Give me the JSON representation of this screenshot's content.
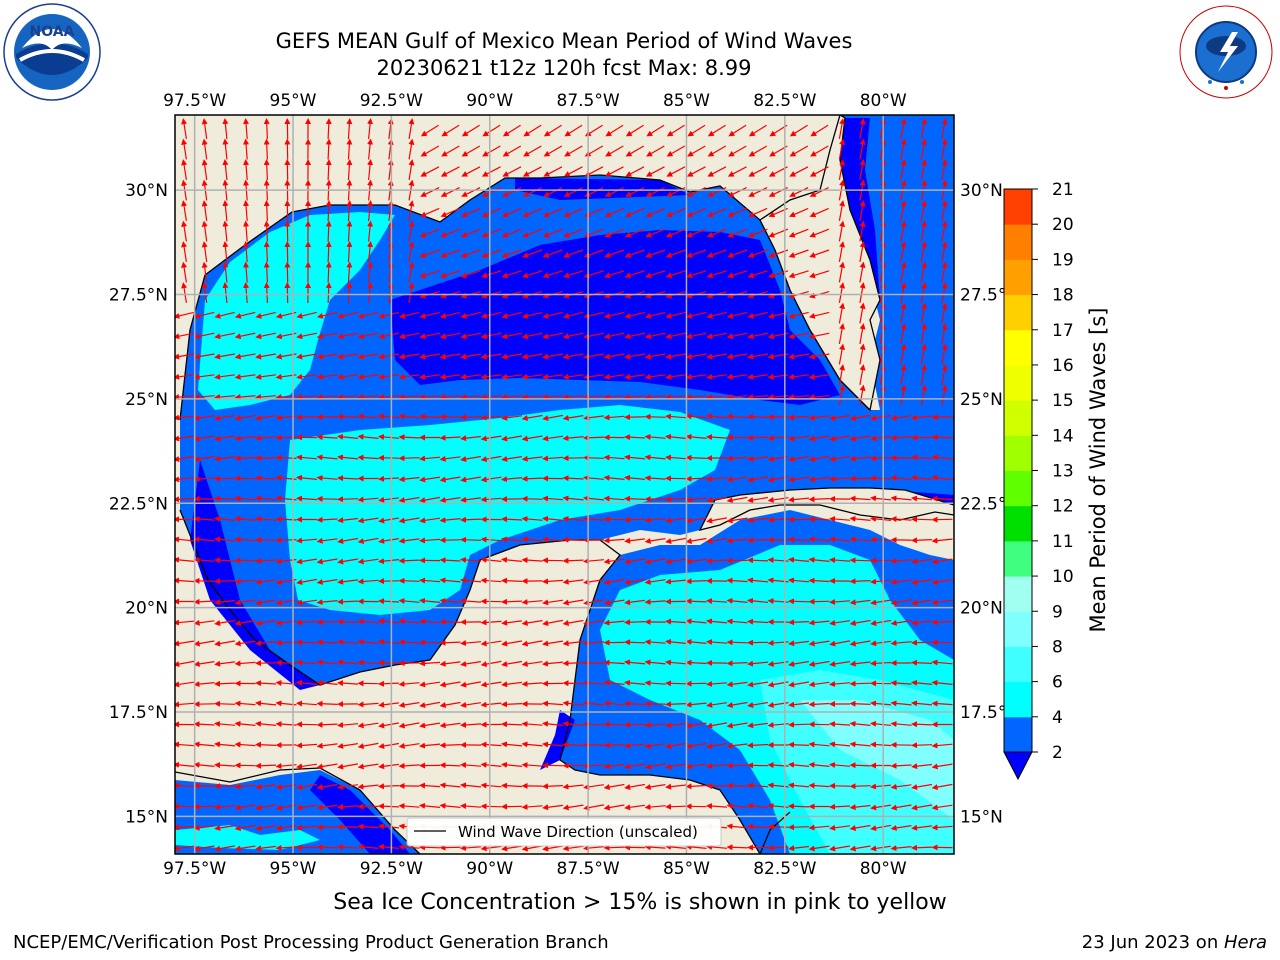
{
  "title": {
    "line1": "GEFS MEAN Gulf of Mexico Mean Period of Wind Waves",
    "line2": "20230621 t12z 120h fcst   Max: 8.99"
  },
  "logos": {
    "left": "noaa-logo",
    "left_text": "NOAA",
    "right": "nws-logo",
    "right_text": "NATIONAL WEATHER SERVICE"
  },
  "map": {
    "lon_ticks": [
      "97.5°W",
      "95°W",
      "92.5°W",
      "90°W",
      "87.5°W",
      "85°W",
      "82.5°W",
      "80°W"
    ],
    "lat_ticks": [
      "30°N",
      "27.5°N",
      "25°N",
      "22.5°N",
      "20°N",
      "17.5°N",
      "15°N"
    ],
    "lon_values": [
      -97.5,
      -95,
      -92.5,
      -90,
      -87.5,
      -85,
      -82.5,
      -80
    ],
    "lat_values": [
      30,
      27.5,
      25,
      22.5,
      20,
      17.5,
      15
    ],
    "extent": {
      "lon_min": -98,
      "lon_max": -78.2,
      "lat_min": 14.1,
      "lat_max": 31.8
    },
    "land_color": "#efecdc",
    "arrow_color": "#ff0000",
    "legend_label": "Wind Wave Direction (unscaled)"
  },
  "colorbar": {
    "label": "Mean Period of Wind Waves [s]",
    "ticks": [
      "2",
      "4",
      "6",
      "8",
      "9",
      "10",
      "11",
      "12",
      "13",
      "14",
      "15",
      "16",
      "17",
      "18",
      "19",
      "20",
      "21"
    ],
    "colors": [
      "#0066ff",
      "#00ffff",
      "#40ffff",
      "#80ffff",
      "#a0fff0",
      "#40ff80",
      "#00e000",
      "#60ff00",
      "#a0ff00",
      "#d0ff00",
      "#f0ff00",
      "#ffff00",
      "#ffd000",
      "#ffa000",
      "#ff8000",
      "#ff4000",
      "#ff0000"
    ],
    "under_color": "#0000ff"
  },
  "caption": "Sea Ice Concentration > 15% is shown in pink to yellow",
  "footer": {
    "left": "NCEP/EMC/Verification Post Processing Product Generation Branch",
    "right_prefix": "23 Jun 2023 on ",
    "right_machine": "Hera"
  }
}
